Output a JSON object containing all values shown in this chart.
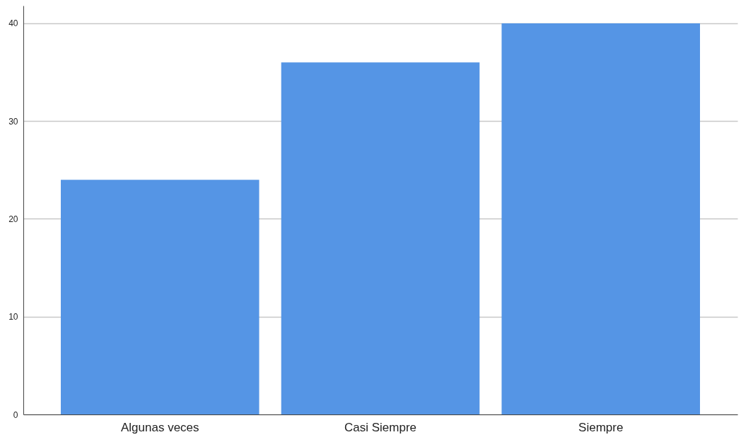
{
  "chart_data": {
    "type": "bar",
    "categories": [
      "Algunas veces",
      "Casi Siempre",
      "Siempre"
    ],
    "values": [
      24,
      36,
      40
    ],
    "color": "#5595e5",
    "ylim": [
      0,
      41.8
    ],
    "yticks": [
      0,
      10,
      20,
      30,
      40
    ],
    "grid": "y"
  }
}
